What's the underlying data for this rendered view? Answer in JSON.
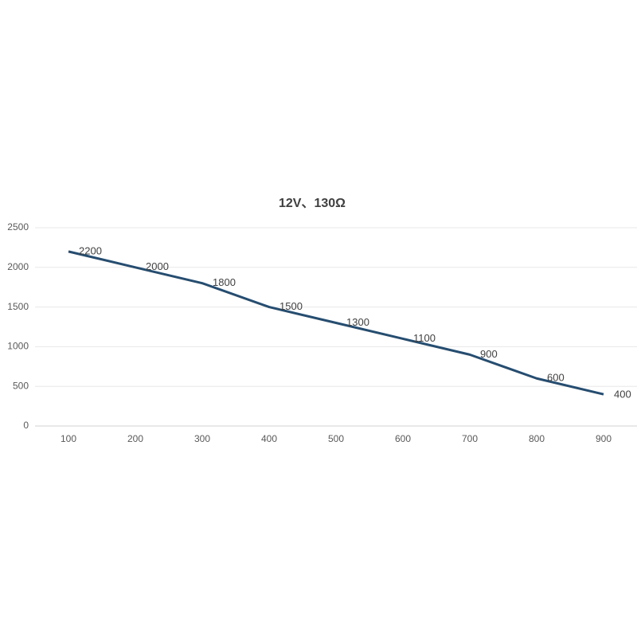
{
  "chart_data": {
    "type": "line",
    "title": "12V、130Ω",
    "categories": [
      "100",
      "200",
      "300",
      "400",
      "500",
      "600",
      "700",
      "800",
      "900"
    ],
    "values": [
      2200,
      2000,
      1800,
      1500,
      1300,
      1100,
      900,
      600,
      400
    ],
    "color": "#264d70",
    "ylim": [
      0,
      2500
    ],
    "yticks": [
      0,
      500,
      1000,
      1500,
      2000,
      2500
    ],
    "grid": true
  }
}
